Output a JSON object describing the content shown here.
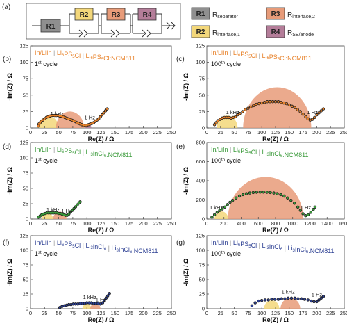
{
  "circuit": {
    "panel_label": "(a)",
    "elements": [
      "R1",
      "R2",
      "R3",
      "R4"
    ],
    "legend": [
      {
        "code": "R1",
        "name": "R",
        "sub": "separator",
        "color": "#8f8f8f"
      },
      {
        "code": "R2",
        "name": "R",
        "sub": "interface,1",
        "color": "#f3d77a"
      },
      {
        "code": "R3",
        "name": "R",
        "sub": "interface,2",
        "color": "#e79b79"
      },
      {
        "code": "R4",
        "name": "R",
        "sub": "SE/anode",
        "color": "#b47d99"
      }
    ]
  },
  "chart_data": [
    {
      "panel": "(b)",
      "type": "scatter",
      "cell": [
        {
          "text": "In/LiIn",
          "sub": ""
        },
        {
          "text": "Li",
          "sub": "6"
        },
        {
          "text": "PS",
          "sub": "5"
        },
        {
          "text": "Cl",
          "sub": ""
        },
        {
          "text": "Li",
          "sub": "6"
        },
        {
          "text": "PS",
          "sub": "5"
        },
        {
          "text": "Cl:NCM811",
          "sub": ""
        }
      ],
      "cell_separators": [
        1,
        4
      ],
      "cycle": {
        "num": "1",
        "sup": "st",
        "rest": " cycle"
      },
      "color": "#e8822a",
      "xlabel": "Re(Z) / Ω",
      "ylabel": "-Im(Z) / Ω",
      "xlim": [
        0,
        250
      ],
      "ylim": [
        0,
        125
      ],
      "xticks": [
        0,
        25,
        50,
        75,
        100,
        125,
        150,
        175,
        200,
        225,
        250
      ],
      "yticks": [
        0,
        25,
        50,
        75,
        100,
        125
      ],
      "annotations": [
        {
          "text": "1 kHz",
          "x": 47,
          "y": 16
        },
        {
          "text": "1 Hz",
          "x": 105,
          "y": 10
        }
      ],
      "arcs": [
        {
          "c": 32,
          "r": 18,
          "color": "#f3d77a"
        },
        {
          "c": 70,
          "r": 25,
          "color": "#e79b79"
        },
        {
          "c": 102,
          "r": 6,
          "color": "#b47d99"
        }
      ],
      "x": [
        14,
        15,
        17,
        19,
        22,
        25,
        28,
        31,
        34,
        37,
        40,
        43,
        46,
        49,
        52,
        55,
        58,
        61,
        64,
        67,
        70,
        73,
        76,
        79,
        82,
        85,
        88,
        91,
        94,
        97,
        100,
        103,
        106,
        109,
        112,
        115,
        118,
        121,
        124,
        127,
        130,
        133,
        136
      ],
      "y": [
        3,
        6,
        8,
        10,
        12,
        14,
        16,
        17,
        18,
        19,
        19,
        19,
        19,
        19,
        18,
        18,
        17,
        16,
        15,
        14,
        13,
        12,
        11,
        10,
        8,
        7,
        6,
        5,
        4,
        4,
        4,
        5,
        6,
        7,
        8,
        10,
        12,
        14,
        17,
        20,
        23,
        26,
        29
      ]
    },
    {
      "panel": "(c)",
      "type": "scatter",
      "cell": [
        {
          "text": "In/LiIn",
          "sub": ""
        },
        {
          "text": "Li",
          "sub": "6"
        },
        {
          "text": "PS",
          "sub": "5"
        },
        {
          "text": "Cl",
          "sub": ""
        },
        {
          "text": "Li",
          "sub": "6"
        },
        {
          "text": "PS",
          "sub": "5"
        },
        {
          "text": "Cl:NCM811",
          "sub": ""
        }
      ],
      "cell_separators": [
        1,
        4
      ],
      "cycle": {
        "num": "100",
        "sup": "th",
        "rest": " cycle"
      },
      "color": "#e8822a",
      "xlabel": "Re(Z) / Ω",
      "ylabel": "-Im(Z) / Ω",
      "xlim": [
        0,
        250
      ],
      "ylim": [
        0,
        125
      ],
      "xticks": [
        0,
        25,
        50,
        75,
        100,
        125,
        150,
        175,
        200,
        225,
        250
      ],
      "yticks": [
        0,
        25,
        50,
        75,
        100,
        125
      ],
      "annotations": [
        {
          "text": "1 kHz",
          "x": 47,
          "y": 18
        },
        {
          "text": "1 Hz",
          "x": 192,
          "y": 18
        }
      ],
      "arcs": [
        {
          "c": 37,
          "r": 19,
          "color": "#f3d77a"
        },
        {
          "c": 128,
          "r": 62,
          "color": "#e79b79"
        }
      ],
      "x": [
        14,
        17,
        20,
        24,
        28,
        32,
        36,
        40,
        44,
        48,
        52,
        56,
        60,
        65,
        70,
        75,
        80,
        85,
        90,
        95,
        100,
        105,
        110,
        115,
        120,
        125,
        130,
        135,
        140,
        145,
        150,
        155,
        160,
        165,
        170,
        175,
        180,
        184,
        188,
        192,
        196,
        200,
        204,
        208,
        212
      ],
      "y": [
        5,
        8,
        11,
        13,
        15,
        16,
        16,
        16,
        15,
        16,
        17,
        20,
        22,
        25,
        28,
        30,
        32,
        34,
        36,
        37,
        38,
        39,
        40,
        40,
        40,
        40,
        40,
        39,
        38,
        37,
        35,
        33,
        31,
        28,
        25,
        21,
        17,
        14,
        12,
        13,
        16,
        20,
        23,
        26,
        29
      ]
    },
    {
      "panel": "(d)",
      "type": "scatter",
      "cell": [
        {
          "text": "In/LiIn",
          "sub": ""
        },
        {
          "text": "Li",
          "sub": "6"
        },
        {
          "text": "PS",
          "sub": "5"
        },
        {
          "text": "Cl",
          "sub": ""
        },
        {
          "text": "Li",
          "sub": "3"
        },
        {
          "text": "InCl",
          "sub": "6"
        },
        {
          "text": ":NCM811",
          "sub": ""
        }
      ],
      "cell_separators": [
        1,
        4
      ],
      "cycle": {
        "num": "1",
        "sup": "st",
        "rest": " cycle"
      },
      "color": "#3a9a3a",
      "xlabel": "Re(Z) / Ω",
      "ylabel": "-Im(Z) / Ω",
      "xlim": [
        0,
        250
      ],
      "ylim": [
        0,
        125
      ],
      "xticks": [
        0,
        25,
        50,
        75,
        100,
        125,
        150,
        175,
        200,
        225,
        250
      ],
      "yticks": [
        0,
        25,
        50,
        75,
        100,
        125
      ],
      "annotations": [
        {
          "text": "1 kHz",
          "x": 40,
          "y": 9
        },
        {
          "text": "1 Hz",
          "x": 64,
          "y": 7
        }
      ],
      "arcs": [
        {
          "c": 30,
          "r": 10,
          "color": "#f3d77a"
        },
        {
          "c": 52,
          "r": 12,
          "color": "#e79b79"
        }
      ],
      "x": [
        14,
        17,
        20,
        23,
        26,
        29,
        32,
        35,
        38,
        41,
        44,
        47,
        50,
        53,
        56,
        59,
        62,
        65,
        68,
        71,
        74,
        77,
        80,
        83,
        86,
        88
      ],
      "y": [
        3,
        5,
        7,
        8,
        9,
        10,
        10,
        10,
        10,
        10,
        10,
        10,
        9,
        9,
        8,
        7,
        6,
        6,
        8,
        11,
        14,
        17,
        20,
        23,
        26,
        28
      ]
    },
    {
      "panel": "(e)",
      "type": "scatter",
      "cell": [
        {
          "text": "In/LiIn",
          "sub": ""
        },
        {
          "text": "Li",
          "sub": "6"
        },
        {
          "text": "PS",
          "sub": "5"
        },
        {
          "text": "Cl",
          "sub": ""
        },
        {
          "text": "Li",
          "sub": "3"
        },
        {
          "text": "InCl",
          "sub": "6"
        },
        {
          "text": ":NCM811",
          "sub": ""
        }
      ],
      "cell_separators": [
        1,
        4
      ],
      "cycle": {
        "num": "100",
        "sup": "th",
        "rest": " cycle"
      },
      "color": "#3a9a3a",
      "xlabel": "Re(Z) / Ω",
      "ylabel": "-Im(Z) / Ω",
      "xlim": [
        0,
        1600
      ],
      "ylim": [
        0,
        800
      ],
      "xticks": [
        0,
        200,
        400,
        600,
        800,
        1000,
        1200,
        1400,
        1600
      ],
      "yticks": [
        0,
        200,
        400,
        600,
        800
      ],
      "annotations": [
        {
          "text": "1 kHz",
          "x": 110,
          "y": 80
        },
        {
          "text": "1 Hz",
          "x": 1150,
          "y": 80
        }
      ],
      "arcs": [
        {
          "c": 170,
          "r": 80,
          "color": "#f3d77a"
        },
        {
          "c": 685,
          "r": 440,
          "color": "#e79b79"
        }
      ],
      "x": [
        60,
        90,
        120,
        150,
        180,
        210,
        240,
        270,
        300,
        340,
        380,
        420,
        460,
        500,
        540,
        580,
        620,
        660,
        700,
        740,
        780,
        820,
        860,
        900,
        940,
        980,
        1020,
        1060,
        1090,
        1120,
        1150,
        1180,
        1210,
        1240,
        1260
      ],
      "y": [
        20,
        45,
        70,
        90,
        105,
        125,
        150,
        175,
        195,
        220,
        240,
        255,
        265,
        272,
        277,
        280,
        281,
        281,
        280,
        277,
        272,
        265,
        255,
        240,
        220,
        195,
        165,
        125,
        90,
        55,
        35,
        45,
        70,
        100,
        125
      ]
    },
    {
      "panel": "(f)",
      "type": "scatter",
      "cell": [
        {
          "text": "In/LiIn",
          "sub": ""
        },
        {
          "text": "Li",
          "sub": "6"
        },
        {
          "text": "PS",
          "sub": "5"
        },
        {
          "text": "Cl",
          "sub": ""
        },
        {
          "text": "Li",
          "sub": "3"
        },
        {
          "text": "InCl",
          "sub": "6"
        },
        {
          "text": "",
          "sub": ""
        },
        {
          "text": "Li",
          "sub": "3"
        },
        {
          "text": "InCl",
          "sub": "6"
        },
        {
          "text": ":NCM811",
          "sub": ""
        }
      ],
      "cell_separators": [
        1,
        4,
        6
      ],
      "cycle": {
        "num": "1",
        "sup": "st",
        "rest": " cycle"
      },
      "color": "#2b3e92",
      "xlabel": "Re(Z) / Ω",
      "ylabel": "-Im(Z) / Ω",
      "xlim": [
        0,
        250
      ],
      "ylim": [
        0,
        125
      ],
      "xticks": [
        0,
        25,
        50,
        75,
        100,
        125,
        150,
        175,
        200,
        225,
        250
      ],
      "yticks": [
        0,
        25,
        50,
        75,
        100,
        125
      ],
      "annotations": [
        {
          "text": "1 kHz",
          "x": 105,
          "y": 13
        },
        {
          "text": "1 Hz",
          "x": 125,
          "y": 9
        }
      ],
      "arcs": [
        {
          "c": 100,
          "r": 8,
          "color": "#f3d77a"
        },
        {
          "c": 115,
          "r": 9,
          "color": "#e79b79"
        }
      ],
      "x": [
        52,
        56,
        60,
        64,
        68,
        72,
        76,
        80,
        84,
        88,
        92,
        96,
        100,
        104,
        108,
        112,
        116,
        120,
        124,
        128,
        131,
        134,
        137,
        140
      ],
      "y": [
        2,
        4,
        5,
        6,
        7,
        7,
        8,
        8,
        8,
        9,
        9,
        9,
        10,
        10,
        10,
        9,
        9,
        9,
        8,
        10,
        14,
        18,
        22,
        26
      ]
    },
    {
      "panel": "(g)",
      "type": "scatter",
      "cell": [
        {
          "text": "In/LiIn",
          "sub": ""
        },
        {
          "text": "Li",
          "sub": "6"
        },
        {
          "text": "PS",
          "sub": "5"
        },
        {
          "text": "Cl",
          "sub": ""
        },
        {
          "text": "Li",
          "sub": "3"
        },
        {
          "text": "InCl",
          "sub": "6"
        },
        {
          "text": "",
          "sub": ""
        },
        {
          "text": "Li",
          "sub": "3"
        },
        {
          "text": "InCl",
          "sub": "6"
        },
        {
          "text": ":NCM811",
          "sub": ""
        }
      ],
      "cell_separators": [
        1,
        4,
        6
      ],
      "cycle": {
        "num": "100",
        "sup": "th",
        "rest": " cycle"
      },
      "color": "#2b3e92",
      "xlabel": "Re(Z) / Ω",
      "ylabel": "-Im(Z) / Ω",
      "xlim": [
        0,
        250
      ],
      "ylim": [
        0,
        125
      ],
      "xticks": [
        0,
        25,
        50,
        75,
        100,
        125,
        150,
        175,
        200,
        225,
        250
      ],
      "yticks": [
        0,
        25,
        50,
        75,
        100,
        125
      ],
      "annotations": [
        {
          "text": "1 kHz",
          "x": 148,
          "y": 22
        },
        {
          "text": "1 Hz",
          "x": 200,
          "y": 17
        }
      ],
      "arcs": [
        {
          "c": 118,
          "r": 14,
          "color": "#f3d77a"
        },
        {
          "c": 152,
          "r": 18,
          "color": "#e79b79"
        }
      ],
      "x": [
        82,
        88,
        94,
        100,
        106,
        112,
        118,
        124,
        130,
        136,
        142,
        148,
        154,
        160,
        166,
        172,
        178,
        184,
        190,
        195,
        200,
        204,
        208,
        212
      ],
      "y": [
        5,
        10,
        13,
        14,
        15,
        15,
        16,
        16,
        16,
        17,
        17,
        18,
        18,
        18,
        17,
        17,
        16,
        15,
        13,
        12,
        12,
        15,
        18,
        21
      ]
    }
  ]
}
